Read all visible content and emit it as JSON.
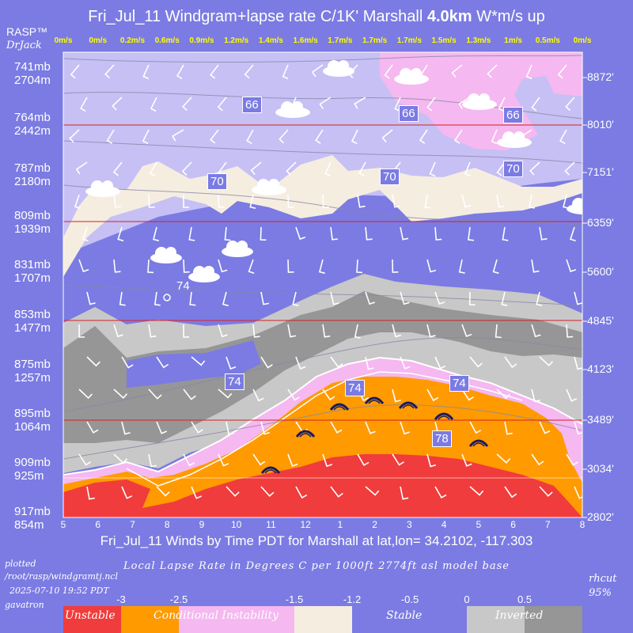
{
  "header": {
    "title_prefix": "Fri_Jul_11 Windgram+lapse rate C/1K'  Marshall ",
    "title_bold": "4.0km",
    "title_suffix": "  W*m/s up",
    "brand": "RASP™",
    "brand_sub": "DrJack"
  },
  "chart_data": {
    "type": "heatmap",
    "title": "Fri_Jul_11 Windgram+lapse rate C/1K'  Marshall 4.0km  W*m/s up",
    "xlabel": "Fri_Jul_11 Winds by Time PDT for Marshall at lat,lon= 34.2102, -117.303",
    "x_ticks": [
      "5",
      "6",
      "7",
      "8",
      "9",
      "10",
      "11",
      "12",
      "1",
      "2",
      "3",
      "4",
      "5",
      "6",
      "7",
      "8"
    ],
    "top_updraft_labels": [
      "0m/s",
      "0m/s",
      "0.2m/s",
      "0.6m/s",
      "0.9m/s",
      "1.2m/s",
      "1.4m/s",
      "1.6m/s",
      "1.7m/s",
      "1.7m/s",
      "1.7m/s",
      "1.5m/s",
      "1.3m/s",
      "1m/s",
      "0.5m/s",
      "0m/s"
    ],
    "left_axis": [
      {
        "mb": "741mb",
        "m": "2704m"
      },
      {
        "mb": "764mb",
        "m": "2442m"
      },
      {
        "mb": "787mb",
        "m": "2180m"
      },
      {
        "mb": "809mb",
        "m": "1939m"
      },
      {
        "mb": "831mb",
        "m": "1707m"
      },
      {
        "mb": "853mb",
        "m": "1477m"
      },
      {
        "mb": "875mb",
        "m": "1257m"
      },
      {
        "mb": "895mb",
        "m": "1064m"
      },
      {
        "mb": "909mb",
        "m": "925m"
      },
      {
        "mb": "917mb",
        "m": "854m"
      }
    ],
    "right_axis": [
      "8872'",
      "8010'",
      "7151'",
      "6359'",
      "5600'",
      "4845'",
      "4123'",
      "3489'",
      "3034'",
      "2802'"
    ],
    "temperature_labels": [
      "66",
      "66",
      "66",
      "70",
      "70",
      "70",
      "74",
      "74",
      "74",
      "74",
      "78"
    ],
    "scale_ticks": [
      "-3",
      "-2.5",
      "-1.5",
      "-1.2",
      "-0.5",
      "0",
      "0.5"
    ],
    "legend": [
      {
        "label": "Unstable",
        "color": "#f03c3c"
      },
      {
        "label": "Conditional Instability",
        "color": "#ff9a00"
      },
      {
        "label": "",
        "color": "#f5b8f0"
      },
      {
        "label": "",
        "color": "#f5ede0"
      },
      {
        "label": "Stable",
        "color": "#7b7be3"
      },
      {
        "label": "Inverted",
        "color": "#c8c8c8"
      },
      {
        "label": "",
        "color": "#969696"
      }
    ]
  },
  "notes": {
    "plotted": "plotted",
    "path": "/root/rasp/windgramtj.ncl",
    "datetime": "2025-07-10 19:52 PDT",
    "user": "gavatron",
    "lapse_title": "Local Lapse Rate in Degrees C per 1000ft  2774ft asl model base",
    "rhcut": "rhcut",
    "rhpct": "95%"
  },
  "colors": {
    "background": "#7b7be3",
    "stable": "#7b7be3",
    "lavender": "#c6c0f5",
    "pink": "#f5a8f0",
    "cream": "#f5ede0",
    "unstable": "#f03c3c",
    "conditional": "#ff9a00",
    "gray": "#c8c8c8",
    "darkgray": "#969696",
    "top_labels": "#ffff00"
  }
}
